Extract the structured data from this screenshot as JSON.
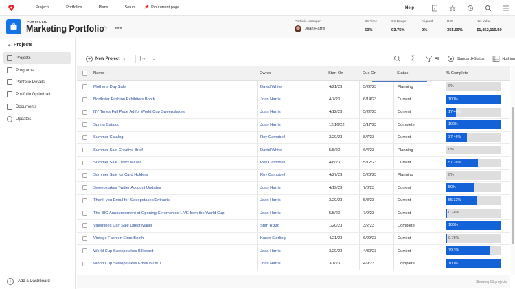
{
  "topnav": {
    "items": [
      "Projects",
      "Portfolios",
      "Plans",
      "Setup"
    ],
    "pin_label": "Pin current page",
    "help_label": "Help"
  },
  "header": {
    "kicker": "PORTFOLIO",
    "title": "Marketing Portfolio",
    "manager_label": "Portfolio Manager",
    "manager_name": "Joan Harris",
    "metrics": [
      {
        "label": "On Time",
        "value": "50%"
      },
      {
        "label": "On Budget",
        "value": "93.75%"
      },
      {
        "label": "Aligned",
        "value": "0%"
      },
      {
        "label": "ROI",
        "value": "355.59%"
      },
      {
        "label": "Net Value",
        "value": "$1,452,119.50"
      }
    ]
  },
  "sidebar": {
    "title": "Projects",
    "items": [
      {
        "label": "Projects",
        "active": true
      },
      {
        "label": "Programs"
      },
      {
        "label": "Portfolio Details"
      },
      {
        "label": "Portfolio Optimizati..."
      },
      {
        "label": "Documents"
      },
      {
        "label": "Updates"
      }
    ],
    "add_dashboard": "Add a Dashboard"
  },
  "toolbar": {
    "new_project": "New Project",
    "filter_label": "All",
    "view_label": "Standard+Status",
    "group_label": "Nothing"
  },
  "table": {
    "columns": [
      "Name ↑",
      "Owner",
      "Start On",
      "Due On",
      "Status",
      "% Complete"
    ],
    "rows": [
      {
        "name": "Mother's Day Sale",
        "owner": "David White",
        "start": "4/21/23",
        "due": "5/22/23",
        "status": "Planning",
        "pct": 0,
        "pct_label": "0%"
      },
      {
        "name": "Northstar Fashion Exhibitors Booth",
        "owner": "Joan Harris",
        "start": "4/7/23",
        "due": "6/14/23",
        "status": "Current",
        "pct": 100,
        "pct_label": "100%"
      },
      {
        "name": "NY Times Full Page Ad for World Cup Sweepstakes",
        "owner": "Joan Harris",
        "start": "4/12/23",
        "due": "5/22/23",
        "status": "Current",
        "pct": 17.46,
        "pct_label": "17.46%"
      },
      {
        "name": "Spring Catalog",
        "owner": "Joan Harris",
        "start": "12/16/22",
        "due": "3/17/23",
        "status": "Complete",
        "pct": 100,
        "pct_label": "100%"
      },
      {
        "name": "Summer Catalog",
        "owner": "Roy Campbell",
        "start": "3/20/23",
        "due": "8/7/23",
        "status": "Current",
        "pct": 37.46,
        "pct_label": "37.46%"
      },
      {
        "name": "Summer Sale Creative Brief",
        "owner": "David White",
        "start": "5/5/23",
        "due": "6/4/23",
        "status": "Planning",
        "pct": 0,
        "pct_label": "0%"
      },
      {
        "name": "Summer Sale Direct Mailer",
        "owner": "Roy Campbell",
        "start": "4/8/23",
        "due": "5/12/23",
        "status": "Current",
        "pct": 57.76,
        "pct_label": "57.76%"
      },
      {
        "name": "Summer Sale for Card Holders",
        "owner": "Roy Campbell",
        "start": "4/27/23",
        "due": "5/28/23",
        "status": "Planning",
        "pct": 0,
        "pct_label": "0%"
      },
      {
        "name": "Sweepstakes Twitter Account Updates",
        "owner": "Joan Harris",
        "start": "4/19/23",
        "due": "7/8/23",
        "status": "Current",
        "pct": 50,
        "pct_label": "50%"
      },
      {
        "name": "Thank you Email for Sweepstakes Entrants",
        "owner": "Joan Harris",
        "start": "3/29/23",
        "due": "5/8/23",
        "status": "Current",
        "pct": 55.32,
        "pct_label": "55.32%"
      },
      {
        "name": "The BIG Announcement at Opening Ceremonies LIVE from the World Cup",
        "owner": "Joan Harris",
        "start": "5/5/23",
        "due": "7/9/23",
        "status": "Current",
        "pct": 0.74,
        "pct_label": "0.74%"
      },
      {
        "name": "Valentines Day Sale Direct Mailer",
        "owner": "Stan Rizzo",
        "start": "1/20/23",
        "due": "3/2/23",
        "status": "Complete",
        "pct": 100,
        "pct_label": "100%"
      },
      {
        "name": "Vintage Fashion Expo Booth",
        "owner": "Karen Sterling",
        "start": "4/21/23",
        "due": "6/29/23",
        "status": "Current",
        "pct": 0.78,
        "pct_label": "0.78%"
      },
      {
        "name": "World Cup Sweepstakes Billboard",
        "owner": "Joan Harris",
        "start": "3/29/23",
        "due": "4/30/23",
        "status": "Current",
        "pct": 79.3,
        "pct_label": "79.3%"
      },
      {
        "name": "World Cup Sweepstakes Email Blast 1",
        "owner": "Joan Harris",
        "start": "3/1/23",
        "due": "4/9/23",
        "status": "Complete",
        "pct": 100,
        "pct_label": "100%"
      }
    ],
    "footer_count": "Showing 15 projects"
  },
  "colors": {
    "accent": "#1473e6",
    "progress_fill": "#1462d8",
    "progress_track": "#dedede",
    "link": "#2d4f9a",
    "logo_red": "#e0252b"
  }
}
